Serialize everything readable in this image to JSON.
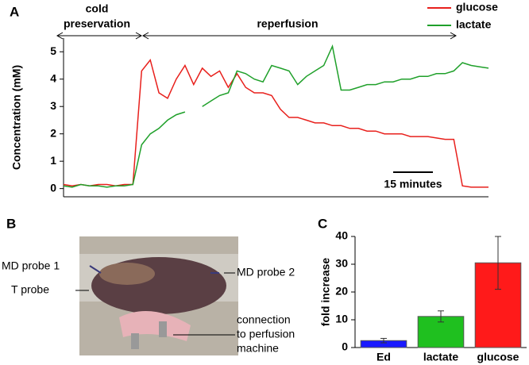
{
  "panel_labels": [
    "A",
    "B",
    "C"
  ],
  "photo": {
    "labels": [
      "MD probe 1",
      "T probe",
      "MD probe 2",
      "connection",
      "to perfusion",
      "machine"
    ]
  },
  "chart_data": [
    {
      "type": "line",
      "ylabel": "Concentration (mM)",
      "annotations": [
        "cold",
        "preservation",
        "reperfusion",
        "15 minutes"
      ],
      "legend": "top-right",
      "ylim": [
        -0.3,
        5.5
      ],
      "yticks": [
        0,
        1,
        2,
        3,
        4,
        5
      ],
      "series": [
        {
          "name": "glucose",
          "color": "#e8201c",
          "values": [
            0.15,
            0.1,
            0.15,
            0.1,
            0.15,
            0.15,
            0.1,
            0.15,
            0.15,
            4.3,
            4.7,
            3.5,
            3.3,
            4.0,
            4.5,
            3.8,
            4.4,
            4.1,
            4.3,
            3.7,
            4.2,
            3.7,
            3.5,
            3.5,
            3.4,
            2.9,
            2.6,
            2.6,
            2.5,
            2.4,
            2.4,
            2.3,
            2.3,
            2.2,
            2.2,
            2.1,
            2.1,
            2.0,
            2.0,
            2.0,
            1.9,
            1.9,
            1.9,
            1.85,
            1.8,
            1.8,
            0.1,
            0.05,
            0.05,
            0.05
          ]
        },
        {
          "name": "lactate",
          "color": "#1fa02a",
          "values": [
            0.1,
            0.05,
            0.15,
            0.1,
            0.1,
            0.05,
            0.1,
            0.1,
            0.15,
            1.6,
            2.0,
            2.2,
            2.5,
            2.7,
            2.8,
            null,
            3.0,
            3.2,
            3.4,
            3.5,
            4.3,
            4.2,
            4.0,
            3.9,
            4.5,
            4.4,
            4.3,
            3.8,
            4.1,
            4.3,
            4.5,
            5.2,
            3.6,
            3.6,
            3.7,
            3.8,
            3.8,
            3.9,
            3.9,
            4.0,
            4.0,
            4.1,
            4.1,
            4.2,
            4.2,
            4.3,
            4.6,
            4.5,
            4.45,
            4.4
          ]
        }
      ]
    },
    {
      "type": "bar",
      "ylabel": "fold increase",
      "categories": [
        "Ed",
        "lactate",
        "glucose"
      ],
      "values": [
        2.5,
        11.2,
        30.5
      ],
      "errors": [
        0.8,
        2.0,
        9.5
      ],
      "colors": [
        "#1a1aff",
        "#1fc01f",
        "#ff1a1a"
      ],
      "ylim": [
        0,
        40
      ],
      "yticks": [
        0,
        10,
        20,
        30,
        40
      ]
    }
  ]
}
